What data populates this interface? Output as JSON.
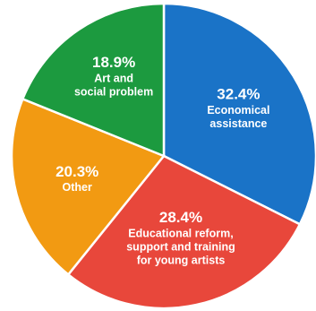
{
  "chart_data": {
    "type": "pie",
    "title": "",
    "slices": [
      {
        "value": 32.4,
        "percent_label": "32.4%",
        "label_lines": [
          "Economical",
          "assistance"
        ],
        "color": "#1a73c7"
      },
      {
        "value": 28.4,
        "percent_label": "28.4%",
        "label_lines": [
          "Educational reform,",
          "support and training",
          "for young artists"
        ],
        "color": "#e8473b"
      },
      {
        "value": 20.3,
        "percent_label": "20.3%",
        "label_lines": [
          "Other"
        ],
        "color": "#f29a12"
      },
      {
        "value": 18.9,
        "percent_label": "18.9%",
        "label_lines": [
          "Art and",
          "social problem"
        ],
        "color": "#1c9a3f"
      }
    ],
    "start": "12 o'clock",
    "direction": "clockwise",
    "legend": "none"
  }
}
